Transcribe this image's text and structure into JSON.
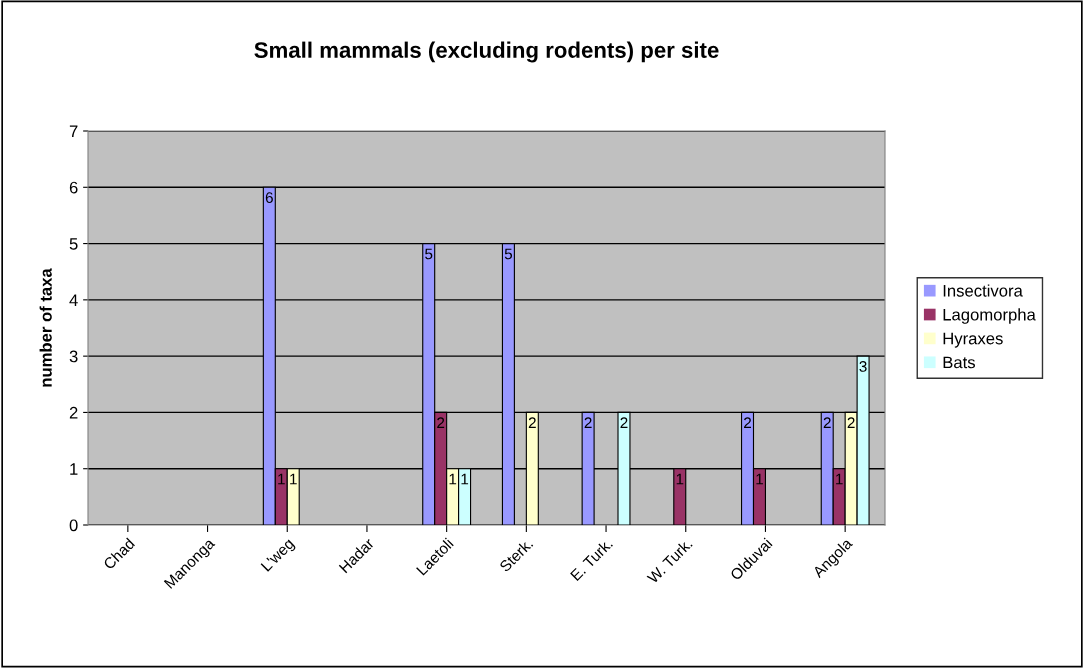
{
  "chart_data": {
    "type": "bar",
    "title": "Small mammals (excluding rodents) per site",
    "ylabel": "number of taxa",
    "categories": [
      "Chad",
      "Manonga",
      "L'weg",
      "Hadar",
      "Laetoli",
      "Sterk.",
      "E. Turk.",
      "W. Turk.",
      "Olduvai",
      "Angola"
    ],
    "series": [
      {
        "name": "Insectivora",
        "color": "#9999ff",
        "values": [
          0,
          0,
          6,
          0,
          5,
          5,
          2,
          0,
          2,
          2
        ],
        "value_labels": [
          null,
          null,
          "6",
          null,
          "5",
          "5",
          "2",
          null,
          "2",
          "2"
        ]
      },
      {
        "name": "Lagomorpha",
        "color": "#993366",
        "values": [
          0,
          0,
          1,
          0,
          2,
          0,
          0,
          1,
          1,
          1
        ],
        "value_labels": [
          null,
          null,
          "1",
          null,
          "2",
          null,
          null,
          "1",
          "1",
          "1"
        ]
      },
      {
        "name": "Hyraxes",
        "color": "#ffffcc",
        "values": [
          0,
          0,
          1,
          0,
          1,
          2,
          0,
          0,
          0,
          2
        ],
        "value_labels": [
          null,
          null,
          "1",
          null,
          "1",
          "2",
          null,
          null,
          null,
          "2"
        ]
      },
      {
        "name": "Bats",
        "color": "#ccffff",
        "values": [
          0,
          0,
          0,
          0,
          1,
          0,
          2,
          0,
          0,
          3
        ],
        "value_labels": [
          null,
          null,
          null,
          null,
          "1",
          null,
          "2",
          null,
          null,
          "3"
        ]
      }
    ],
    "ylim": [
      0,
      7
    ],
    "yticks": [
      0,
      1,
      2,
      3,
      4,
      5,
      6,
      7
    ],
    "grid": "y",
    "legend": "right"
  }
}
